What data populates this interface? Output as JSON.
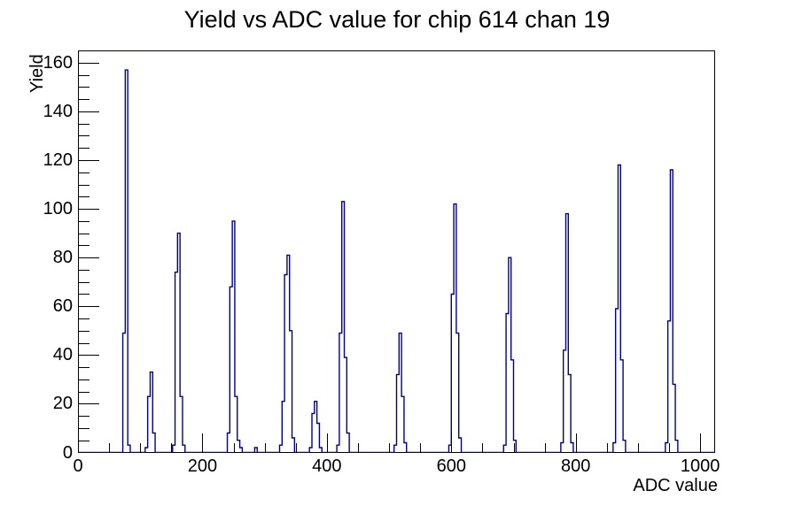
{
  "title": "Yield vs ADC value for chip 614 chan 19",
  "chart_data": {
    "type": "bar",
    "subtype": "step-histogram",
    "title": "Yield vs ADC value for chip 614 chan 19",
    "xlabel": "ADC value",
    "ylabel": "Yield",
    "xlim": [
      0,
      1024
    ],
    "ylim": [
      0,
      164.85
    ],
    "x_major_ticks": [
      0,
      200,
      400,
      600,
      800,
      1000
    ],
    "x_minor_step": 50,
    "y_major_ticks": [
      0,
      20,
      40,
      60,
      80,
      100,
      120,
      140,
      160
    ],
    "y_minor_step": 5,
    "grid": false,
    "legend": "none",
    "line_color": "#00008b",
    "axis_color": "#000000",
    "bin_width": 4,
    "peaks_summary": [
      {
        "adc": 78,
        "yield": 157
      },
      {
        "adc": 118,
        "yield": 33
      },
      {
        "adc": 162,
        "yield": 90
      },
      {
        "adc": 250,
        "yield": 95
      },
      {
        "adc": 338,
        "yield": 81
      },
      {
        "adc": 382,
        "yield": 21
      },
      {
        "adc": 426,
        "yield": 103
      },
      {
        "adc": 518,
        "yield": 49
      },
      {
        "adc": 606,
        "yield": 102
      },
      {
        "adc": 694,
        "yield": 80
      },
      {
        "adc": 786,
        "yield": 98
      },
      {
        "adc": 870,
        "yield": 118
      },
      {
        "adc": 954,
        "yield": 116
      }
    ],
    "bins": [
      [
        72,
        49
      ],
      [
        76,
        157
      ],
      [
        80,
        3
      ],
      [
        108,
        2
      ],
      [
        112,
        23
      ],
      [
        116,
        33
      ],
      [
        120,
        8
      ],
      [
        152,
        3
      ],
      [
        156,
        74
      ],
      [
        160,
        90
      ],
      [
        164,
        23
      ],
      [
        168,
        3
      ],
      [
        240,
        8
      ],
      [
        244,
        68
      ],
      [
        248,
        95
      ],
      [
        252,
        23
      ],
      [
        256,
        5
      ],
      [
        260,
        2
      ],
      [
        284,
        2
      ],
      [
        324,
        3
      ],
      [
        328,
        21
      ],
      [
        332,
        73
      ],
      [
        336,
        81
      ],
      [
        340,
        50
      ],
      [
        344,
        6
      ],
      [
        372,
        2
      ],
      [
        376,
        16
      ],
      [
        380,
        21
      ],
      [
        384,
        12
      ],
      [
        388,
        2
      ],
      [
        416,
        3
      ],
      [
        420,
        49
      ],
      [
        424,
        103
      ],
      [
        428,
        39
      ],
      [
        432,
        8
      ],
      [
        508,
        3
      ],
      [
        512,
        32
      ],
      [
        516,
        49
      ],
      [
        520,
        23
      ],
      [
        524,
        4
      ],
      [
        596,
        3
      ],
      [
        600,
        65
      ],
      [
        604,
        102
      ],
      [
        608,
        49
      ],
      [
        612,
        6
      ],
      [
        684,
        3
      ],
      [
        688,
        57
      ],
      [
        692,
        80
      ],
      [
        696,
        38
      ],
      [
        700,
        5
      ],
      [
        776,
        4
      ],
      [
        780,
        42
      ],
      [
        784,
        98
      ],
      [
        788,
        32
      ],
      [
        792,
        4
      ],
      [
        860,
        4
      ],
      [
        864,
        59
      ],
      [
        868,
        118
      ],
      [
        872,
        38
      ],
      [
        876,
        5
      ],
      [
        944,
        4
      ],
      [
        948,
        54
      ],
      [
        952,
        116
      ],
      [
        956,
        28
      ],
      [
        960,
        5
      ]
    ],
    "tick_style": {
      "x_major_len": 22,
      "x_minor_len": 11,
      "y_major_len": 24,
      "y_minor_len": 13
    }
  }
}
